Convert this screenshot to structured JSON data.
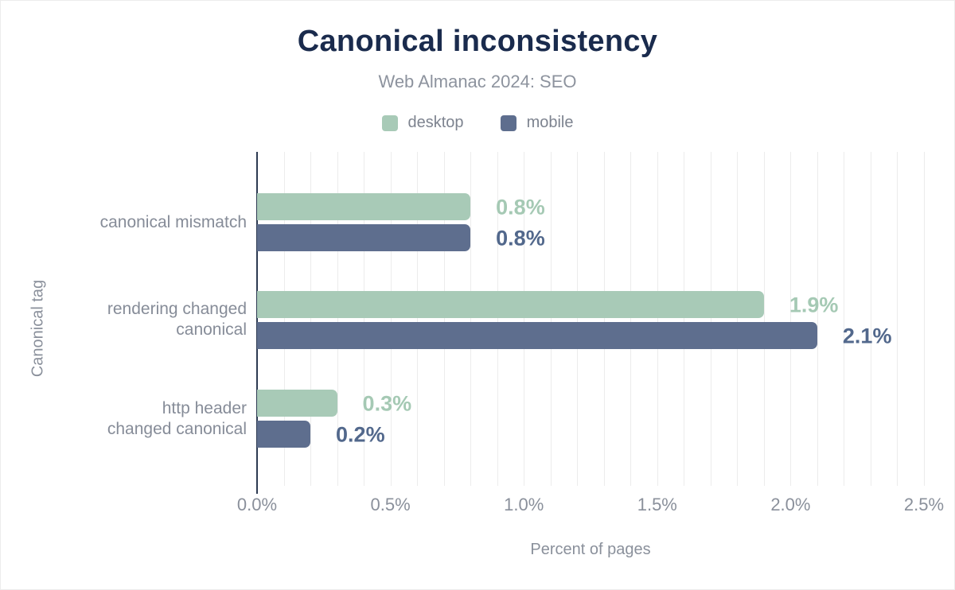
{
  "header": {
    "title": "Canonical inconsistency",
    "subtitle": "Web Almanac 2024: SEO"
  },
  "legend": {
    "items": [
      {
        "name": "desktop",
        "label": "desktop"
      },
      {
        "name": "mobile",
        "label": "mobile"
      }
    ]
  },
  "axes": {
    "x_title": "Percent of pages",
    "y_title": "Canonical tag"
  },
  "colors": {
    "title": "#1a2b4d",
    "muted_text": "#8a909b",
    "axis_line": "#2d3a52",
    "gridline": "#ececec",
    "desktop": "#a8cab7",
    "mobile": "#5e6e8e",
    "desktop_label": "#a5c9b4",
    "mobile_label": "#52688c"
  },
  "chart_data": {
    "type": "bar",
    "orientation": "horizontal",
    "title": "Canonical inconsistency",
    "subtitle": "Web Almanac 2024: SEO",
    "xlabel": "Percent of pages",
    "ylabel": "Canonical tag",
    "xlim": [
      0,
      2.5
    ],
    "x_ticks": [
      "0.0%",
      "0.5%",
      "1.0%",
      "1.5%",
      "2.0%",
      "2.5%"
    ],
    "grid": "vertical minor gridlines every 0.1%",
    "legend_position": "top",
    "categories": [
      "canonical mismatch",
      "rendering changed\ncanonical",
      "http header\nchanged canonical"
    ],
    "series": [
      {
        "name": "desktop",
        "values": [
          0.8,
          1.9,
          0.3
        ],
        "labels": [
          "0.8%",
          "1.9%",
          "0.3%"
        ]
      },
      {
        "name": "mobile",
        "values": [
          0.8,
          2.1,
          0.2
        ],
        "labels": [
          "0.8%",
          "2.1%",
          "0.2%"
        ]
      }
    ]
  }
}
